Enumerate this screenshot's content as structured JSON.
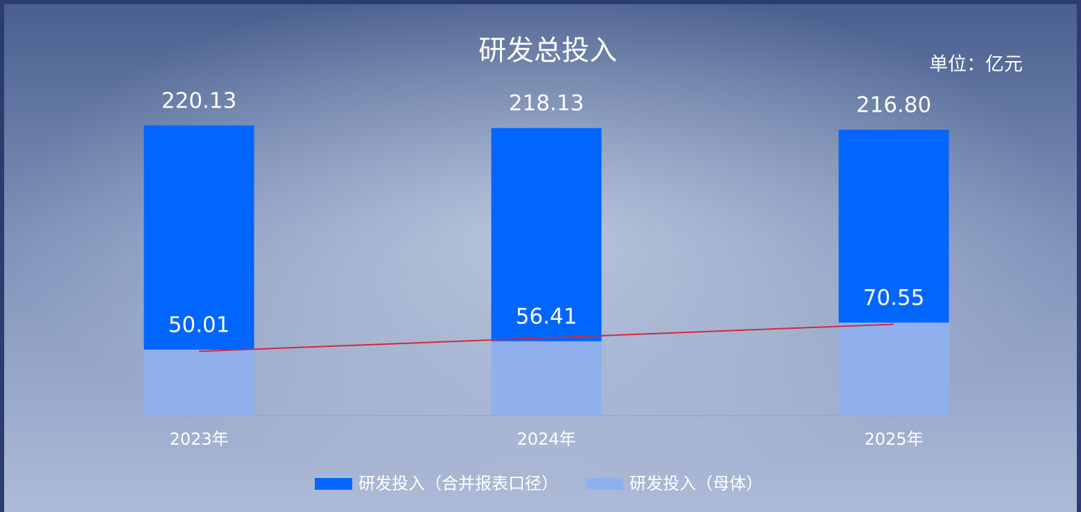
{
  "chart_data": {
    "type": "bar",
    "mode": "overlap",
    "title": "研发总投入",
    "unit": "单位：亿元",
    "categories": [
      "2023年",
      "2024年",
      "2025年"
    ],
    "series": [
      {
        "name": "研发投入（合并报表口径）",
        "color": "#0066ff",
        "values": [
          220.13,
          218.13,
          216.8
        ],
        "value_labels": [
          "220.13",
          "218.13",
          "216.80"
        ]
      },
      {
        "name": "研发投入（母体）",
        "color": "#8fb0ec",
        "values": [
          50.01,
          56.41,
          70.55
        ],
        "value_labels": [
          "50.01",
          "56.41",
          "70.55"
        ],
        "trendline": true,
        "trend_color": "#d2283c"
      }
    ],
    "ylim": [
      0,
      230
    ],
    "grid": false
  }
}
